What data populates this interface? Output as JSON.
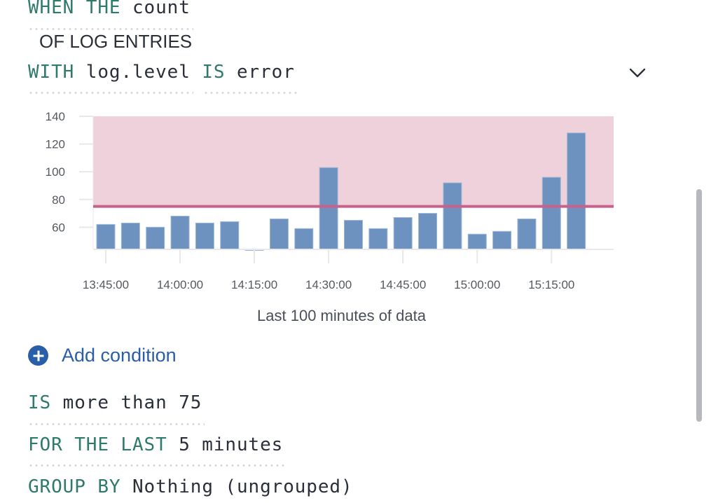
{
  "query": {
    "when_kw": "WHEN THE",
    "aggregation": "count",
    "of_label": "OF LOG ENTRIES",
    "with_kw": "WITH",
    "field": "log.level",
    "is_kw": "IS",
    "field_value": "error",
    "expand_icon": "chevron-down-icon"
  },
  "chart_data": {
    "type": "bar",
    "x": [
      "13:45:00",
      "13:50:00",
      "13:55:00",
      "14:00:00",
      "14:05:00",
      "14:10:00",
      "14:15:00",
      "14:20:00",
      "14:25:00",
      "14:30:00",
      "14:35:00",
      "14:40:00",
      "14:45:00",
      "14:50:00",
      "14:55:00",
      "15:00:00",
      "15:05:00",
      "15:10:00",
      "15:15:00",
      "15:20:00"
    ],
    "values": [
      62,
      63,
      60,
      68,
      63,
      64,
      44,
      66,
      59,
      103,
      65,
      59,
      67,
      70,
      92,
      55,
      57,
      66,
      96,
      128
    ],
    "x_ticks": [
      "13:45:00",
      "14:00:00",
      "14:15:00",
      "14:30:00",
      "14:45:00",
      "15:00:00",
      "15:15:00"
    ],
    "y_ticks": [
      60,
      80,
      100,
      120,
      140
    ],
    "ylim": [
      44,
      140
    ],
    "threshold": 75,
    "threshold_region": "above",
    "xlabel": "Last 100 minutes of data",
    "grid": false,
    "colors": {
      "bar": "#6d92bf",
      "threshold": "#c9628a",
      "region": "#efd1db"
    }
  },
  "add_condition": {
    "label": "Add condition",
    "icon": "plus-circle-icon"
  },
  "threshold": {
    "is_kw": "IS",
    "comparator": "more than",
    "value": "75"
  },
  "window": {
    "kw": "FOR THE LAST",
    "value": "5 minutes"
  },
  "group": {
    "kw": "GROUP BY",
    "value": "Nothing (ungrouped)"
  }
}
